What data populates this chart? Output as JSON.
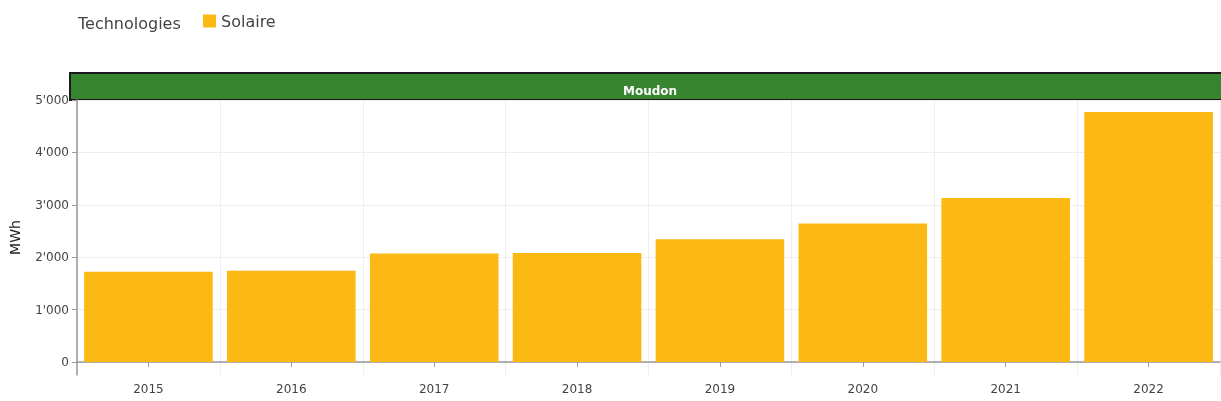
{
  "chart_data": {
    "type": "bar",
    "title": "Moudon",
    "legend_title": "Technologies",
    "ylabel": "MWh",
    "categories": [
      "2015",
      "2016",
      "2017",
      "2018",
      "2019",
      "2020",
      "2021",
      "2022"
    ],
    "series": [
      {
        "name": "Solaire",
        "color": "#fdb913",
        "values": [
          1720,
          1740,
          2070,
          2080,
          2340,
          2640,
          3130,
          4770
        ]
      }
    ],
    "ylim": [
      -250,
      5000
    ],
    "yticks": [
      0,
      {
        "value": 1000,
        "label": "1'000"
      },
      {
        "value": 2000,
        "label": "2'000"
      },
      {
        "value": 3000,
        "label": "3'000"
      },
      {
        "value": 4000,
        "label": "4'000"
      },
      {
        "value": 5000,
        "label": "5'000"
      }
    ],
    "grid": true,
    "legend": "top left"
  }
}
